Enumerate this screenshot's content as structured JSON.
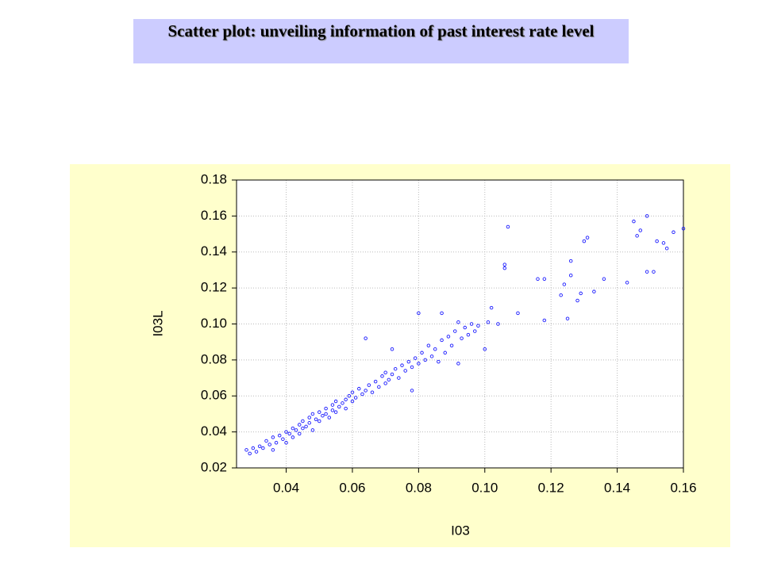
{
  "chart_data": {
    "type": "scatter",
    "title": "Scatter plot: unveiling information of past interest rate level",
    "xlabel": "I03",
    "ylabel": "I03L",
    "color": "#1a1aff",
    "grid": true,
    "xlim": [
      0.025,
      0.16
    ],
    "ylim": [
      0.02,
      0.18
    ],
    "xticks": [
      0.04,
      0.06,
      0.08,
      {
        "value": 0.1,
        "label": "0.10"
      },
      0.12,
      0.14,
      0.16
    ],
    "yticks": [
      0.02,
      0.04,
      0.06,
      0.08,
      {
        "value": 0.1,
        "label": "0.10"
      },
      0.12,
      0.14,
      0.16,
      0.18
    ],
    "x": [
      0.028,
      0.029,
      0.03,
      0.031,
      0.032,
      0.033,
      0.034,
      0.035,
      0.036,
      0.036,
      0.037,
      0.038,
      0.039,
      0.04,
      0.04,
      0.041,
      0.042,
      0.042,
      0.043,
      0.044,
      0.044,
      0.045,
      0.045,
      0.046,
      0.047,
      0.047,
      0.048,
      0.048,
      0.049,
      0.05,
      0.05,
      0.051,
      0.052,
      0.052,
      0.053,
      0.054,
      0.054,
      0.055,
      0.055,
      0.056,
      0.057,
      0.058,
      0.058,
      0.059,
      0.06,
      0.06,
      0.061,
      0.062,
      0.063,
      0.064,
      0.064,
      0.065,
      0.066,
      0.067,
      0.068,
      0.069,
      0.07,
      0.07,
      0.071,
      0.072,
      0.072,
      0.073,
      0.074,
      0.075,
      0.076,
      0.077,
      0.078,
      0.078,
      0.079,
      0.08,
      0.08,
      0.081,
      0.082,
      0.083,
      0.084,
      0.085,
      0.086,
      0.087,
      0.087,
      0.088,
      0.089,
      0.09,
      0.091,
      0.092,
      0.092,
      0.093,
      0.094,
      0.095,
      0.096,
      0.097,
      0.098,
      0.1,
      0.101,
      0.102,
      0.104,
      0.106,
      0.106,
      0.107,
      0.11,
      0.116,
      0.118,
      0.118,
      0.123,
      0.124,
      0.125,
      0.126,
      0.126,
      0.128,
      0.129,
      0.13,
      0.131,
      0.133,
      0.136,
      0.143,
      0.145,
      0.146,
      0.147,
      0.149,
      0.149,
      0.151,
      0.152,
      0.154,
      0.155,
      0.157,
      0.16
    ],
    "values": [
      0.03,
      0.028,
      0.031,
      0.029,
      0.032,
      0.031,
      0.035,
      0.033,
      0.03,
      0.037,
      0.034,
      0.038,
      0.036,
      0.04,
      0.034,
      0.039,
      0.042,
      0.037,
      0.041,
      0.044,
      0.039,
      0.046,
      0.042,
      0.043,
      0.048,
      0.045,
      0.041,
      0.05,
      0.047,
      0.051,
      0.046,
      0.049,
      0.053,
      0.05,
      0.048,
      0.055,
      0.052,
      0.057,
      0.051,
      0.054,
      0.056,
      0.058,
      0.053,
      0.06,
      0.057,
      0.062,
      0.059,
      0.064,
      0.061,
      0.063,
      0.092,
      0.066,
      0.062,
      0.068,
      0.065,
      0.071,
      0.067,
      0.073,
      0.069,
      0.086,
      0.072,
      0.075,
      0.07,
      0.077,
      0.074,
      0.079,
      0.076,
      0.063,
      0.081,
      0.078,
      0.106,
      0.084,
      0.08,
      0.088,
      0.082,
      0.086,
      0.079,
      0.091,
      0.106,
      0.084,
      0.093,
      0.088,
      0.096,
      0.078,
      0.101,
      0.092,
      0.098,
      0.094,
      0.1,
      0.096,
      0.099,
      0.086,
      0.101,
      0.109,
      0.1,
      0.131,
      0.133,
      0.154,
      0.106,
      0.125,
      0.102,
      0.125,
      0.116,
      0.122,
      0.103,
      0.135,
      0.127,
      0.113,
      0.117,
      0.146,
      0.148,
      0.118,
      0.125,
      0.123,
      0.157,
      0.149,
      0.152,
      0.16,
      0.129,
      0.129,
      0.146,
      0.145,
      0.142,
      0.151,
      0.153
    ]
  }
}
